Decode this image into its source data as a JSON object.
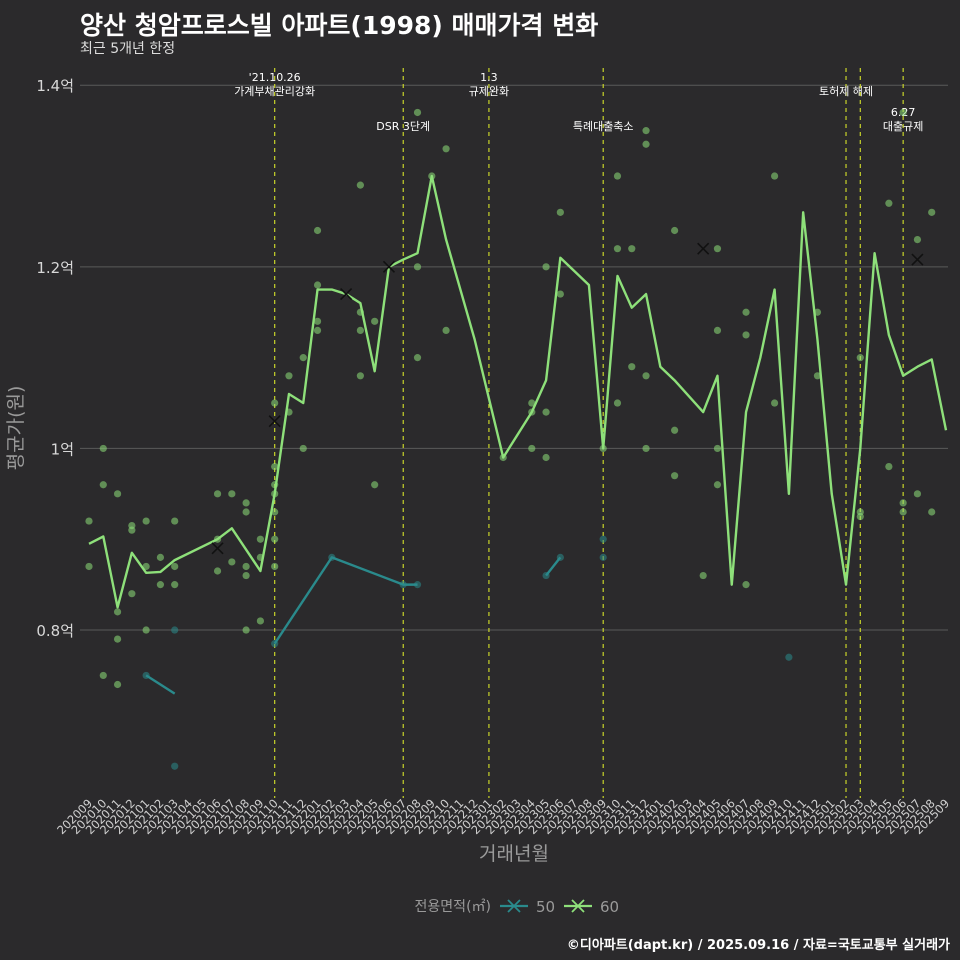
{
  "title": "양산 청암프로스빌 아파트(1998) 매매가격 변화",
  "subtitle": "최근 5개년 한정",
  "footer": "©디아파트(dapt.kr) / 2025.09.16 / 자료=국토교통부 실거래가",
  "colors": {
    "background": "#2b2a2c",
    "grid": "#5a5a5a",
    "series_50": "#2a8a8c",
    "series_60": "#8ee07a",
    "event_line": "#c8d42a"
  },
  "chart_data": {
    "type": "line",
    "title": "양산 청암프로스빌 아파트(1998) 매매가격 변화",
    "subtitle": "최근 5개년 한정",
    "xlabel": "거래년월",
    "ylabel": "평균가(원)",
    "x": [
      "202009",
      "202010",
      "202011",
      "202012",
      "202101",
      "202102",
      "202103",
      "202104",
      "202105",
      "202106",
      "202107",
      "202108",
      "202109",
      "202110",
      "202111",
      "202112",
      "202201",
      "202202",
      "202203",
      "202204",
      "202205",
      "202206",
      "202207",
      "202208",
      "202209",
      "202210",
      "202211",
      "202212",
      "202301",
      "202302",
      "202303",
      "202304",
      "202305",
      "202306",
      "202307",
      "202308",
      "202309",
      "202310",
      "202311",
      "202312",
      "202401",
      "202402",
      "202403",
      "202404",
      "202405",
      "202406",
      "202407",
      "202408",
      "202409",
      "202410",
      "202411",
      "202412",
      "202501",
      "202502",
      "202503",
      "202504",
      "202505",
      "202506",
      "202507",
      "202508",
      "202509"
    ],
    "yticks": [
      0.8,
      1.0,
      1.2,
      1.4
    ],
    "ytick_labels": [
      "0.8억",
      "1억",
      "1.2억",
      "1.4억"
    ],
    "ylim": [
      0.615,
      1.43
    ],
    "grid": true,
    "legend": {
      "title": "전용면적(㎡)",
      "position": "bottom",
      "items": [
        "50",
        "60"
      ]
    },
    "series": [
      {
        "name": "50",
        "line": [
          [
            "202101",
            0.75
          ],
          [
            "202103",
            0.73
          ],
          null,
          [
            "202110",
            0.785
          ],
          [
            "202202",
            0.88
          ],
          [
            "202207",
            0.85
          ],
          [
            "202208",
            0.85
          ],
          null,
          [
            "202305",
            0.86
          ],
          [
            "202306",
            0.88
          ]
        ],
        "points": [
          [
            "202101",
            0.75
          ],
          [
            "202103",
            0.65
          ],
          [
            "202103",
            0.8
          ],
          [
            "202110",
            0.785
          ],
          [
            "202202",
            0.88
          ],
          [
            "202207",
            0.85
          ],
          [
            "202208",
            0.85
          ],
          [
            "202305",
            0.86
          ],
          [
            "202306",
            0.88
          ],
          [
            "202309",
            0.88
          ],
          [
            "202309",
            0.9
          ],
          [
            "202410",
            0.77
          ]
        ],
        "markers": []
      },
      {
        "name": "60",
        "line": [
          [
            "202009",
            0.895
          ],
          [
            "202010",
            0.903
          ],
          [
            "202011",
            0.825
          ],
          [
            "202012",
            0.885
          ],
          [
            "202101",
            0.863
          ],
          [
            "202102",
            0.864
          ],
          [
            "202103",
            0.877
          ],
          [
            "202106",
            0.9
          ],
          [
            "202107",
            0.912
          ],
          [
            "202109",
            0.865
          ],
          [
            "202110",
            0.95
          ],
          [
            "202111",
            1.06
          ],
          [
            "202112",
            1.05
          ],
          [
            "202201",
            1.175
          ],
          [
            "202202",
            1.175
          ],
          [
            "202203",
            1.17
          ],
          [
            "202204",
            1.16
          ],
          [
            "202205",
            1.085
          ],
          [
            "202206",
            1.2
          ],
          [
            "202207",
            1.208
          ],
          [
            "202208",
            1.215
          ],
          [
            "202209",
            1.3
          ],
          [
            "202210",
            1.23
          ],
          [
            "202212",
            1.12
          ],
          [
            "202302",
            0.99
          ],
          [
            "202304",
            1.04
          ],
          [
            "202305",
            1.075
          ],
          [
            "202306",
            1.21
          ],
          [
            "202308",
            1.18
          ],
          [
            "202309",
            1.0
          ],
          [
            "202310",
            1.19
          ],
          [
            "202311",
            1.155
          ],
          [
            "202312",
            1.17
          ],
          [
            "202401",
            1.09
          ],
          [
            "202402",
            1.075
          ],
          [
            "202404",
            1.04
          ],
          [
            "202405",
            1.08
          ],
          [
            "202406",
            0.85
          ],
          [
            "202407",
            1.04
          ],
          [
            "202408",
            1.1
          ],
          [
            "202409",
            1.175
          ],
          [
            "202410",
            0.95
          ],
          [
            "202411",
            1.26
          ],
          [
            "202412",
            1.12
          ],
          [
            "202501",
            0.95
          ],
          [
            "202502",
            0.85
          ],
          [
            "202503",
            1.0
          ],
          [
            "202504",
            1.215
          ],
          [
            "202505",
            1.125
          ],
          [
            "202506",
            1.08
          ],
          [
            "202507",
            1.09
          ],
          [
            "202508",
            1.098
          ],
          [
            "202509",
            1.02
          ]
        ],
        "points": [
          [
            "202009",
            0.92
          ],
          [
            "202009",
            0.87
          ],
          [
            "202010",
            1.0
          ],
          [
            "202010",
            0.96
          ],
          [
            "202010",
            0.75
          ],
          [
            "202011",
            0.95
          ],
          [
            "202011",
            0.74
          ],
          [
            "202011",
            0.79
          ],
          [
            "202011",
            0.82
          ],
          [
            "202012",
            0.91
          ],
          [
            "202012",
            0.915
          ],
          [
            "202012",
            0.84
          ],
          [
            "202101",
            0.92
          ],
          [
            "202101",
            0.87
          ],
          [
            "202101",
            0.8
          ],
          [
            "202102",
            0.88
          ],
          [
            "202102",
            0.85
          ],
          [
            "202103",
            0.92
          ],
          [
            "202103",
            0.87
          ],
          [
            "202103",
            0.85
          ],
          [
            "202106",
            0.95
          ],
          [
            "202106",
            0.865
          ],
          [
            "202106",
            0.9
          ],
          [
            "202107",
            0.95
          ],
          [
            "202107",
            0.875
          ],
          [
            "202108",
            0.94
          ],
          [
            "202108",
            0.93
          ],
          [
            "202108",
            0.87
          ],
          [
            "202108",
            0.86
          ],
          [
            "202108",
            0.8
          ],
          [
            "202109",
            0.9
          ],
          [
            "202109",
            0.88
          ],
          [
            "202109",
            0.81
          ],
          [
            "202110",
            1.05
          ],
          [
            "202110",
            0.98
          ],
          [
            "202110",
            0.96
          ],
          [
            "202110",
            0.95
          ],
          [
            "202110",
            0.93
          ],
          [
            "202110",
            0.9
          ],
          [
            "202110",
            0.87
          ],
          [
            "202111",
            1.08
          ],
          [
            "202111",
            1.04
          ],
          [
            "202112",
            1.1
          ],
          [
            "202112",
            1.0
          ],
          [
            "202201",
            1.24
          ],
          [
            "202201",
            1.18
          ],
          [
            "202201",
            1.14
          ],
          [
            "202201",
            1.13
          ],
          [
            "202204",
            1.29
          ],
          [
            "202204",
            1.15
          ],
          [
            "202204",
            1.13
          ],
          [
            "202204",
            1.08
          ],
          [
            "202205",
            1.14
          ],
          [
            "202205",
            0.96
          ],
          [
            "202208",
            1.37
          ],
          [
            "202208",
            1.2
          ],
          [
            "202208",
            1.1
          ],
          [
            "202209",
            1.3
          ],
          [
            "202210",
            1.33
          ],
          [
            "202210",
            1.13
          ],
          [
            "202302",
            0.99
          ],
          [
            "202304",
            1.05
          ],
          [
            "202304",
            1.04
          ],
          [
            "202304",
            1.0
          ],
          [
            "202305",
            1.2
          ],
          [
            "202305",
            1.04
          ],
          [
            "202305",
            0.99
          ],
          [
            "202306",
            1.26
          ],
          [
            "202306",
            1.17
          ],
          [
            "202309",
            1.0
          ],
          [
            "202310",
            1.3
          ],
          [
            "202310",
            1.22
          ],
          [
            "202310",
            1.05
          ],
          [
            "202311",
            1.22
          ],
          [
            "202311",
            1.09
          ],
          [
            "202312",
            1.35
          ],
          [
            "202312",
            1.335
          ],
          [
            "202312",
            1.08
          ],
          [
            "202312",
            1.0
          ],
          [
            "202402",
            1.24
          ],
          [
            "202402",
            1.02
          ],
          [
            "202402",
            0.97
          ],
          [
            "202404",
            0.86
          ],
          [
            "202405",
            1.22
          ],
          [
            "202405",
            1.13
          ],
          [
            "202405",
            1.0
          ],
          [
            "202405",
            0.96
          ],
          [
            "202407",
            1.15
          ],
          [
            "202407",
            1.125
          ],
          [
            "202407",
            0.85
          ],
          [
            "202409",
            1.3
          ],
          [
            "202409",
            1.05
          ],
          [
            "202412",
            1.15
          ],
          [
            "202412",
            1.08
          ],
          [
            "202503",
            1.1
          ],
          [
            "202503",
            0.93
          ],
          [
            "202503",
            0.925
          ],
          [
            "202505",
            1.27
          ],
          [
            "202505",
            0.98
          ],
          [
            "202506",
            1.37
          ],
          [
            "202506",
            0.94
          ],
          [
            "202506",
            0.93
          ],
          [
            "202507",
            1.23
          ],
          [
            "202507",
            0.95
          ],
          [
            "202508",
            1.26
          ],
          [
            "202508",
            0.93
          ]
        ],
        "markers": [
          [
            "202106",
            0.89
          ],
          [
            "202110",
            1.03
          ],
          [
            "202203",
            1.17
          ],
          [
            "202206",
            1.2
          ],
          [
            "202404",
            1.22
          ],
          [
            "202507",
            1.208
          ]
        ]
      }
    ],
    "events": [
      {
        "x": "202110",
        "label": "'21.10.26\n가계부채관리강화",
        "level": 0
      },
      {
        "x": "202207",
        "label": "DSR 3단계",
        "level": 1
      },
      {
        "x": "202301",
        "label": "1.3\n규제완화",
        "level": 0
      },
      {
        "x": "202309",
        "label": "특례대출축소",
        "level": 1
      },
      {
        "x": "202502",
        "label": "토허제 해제",
        "level": 0
      },
      {
        "x": "202503",
        "label": "",
        "level": 0
      },
      {
        "x": "202506",
        "label": "6.27\n대출규제",
        "level": 1
      }
    ]
  }
}
